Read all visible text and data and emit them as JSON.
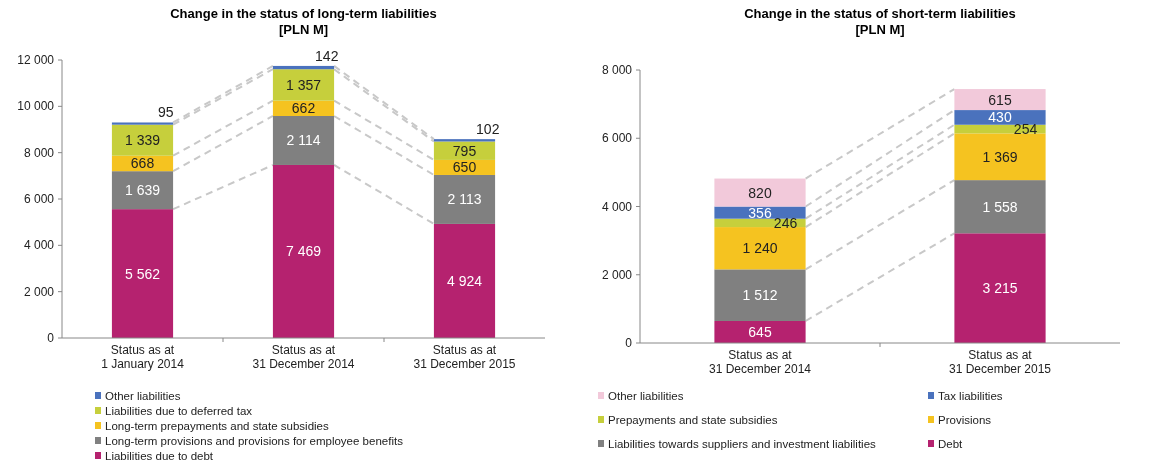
{
  "chart_data": [
    {
      "type": "bar",
      "stacked": true,
      "title": "Change in the status of long-term liabilities\n[PLN M]",
      "categories": [
        "Status as at\n1 January 2014",
        "Status as at\n31 December 2014",
        "Status as at\n31 December 2015"
      ],
      "ylim": [
        0,
        12000
      ],
      "yticks": [
        0,
        {
          "value": 2000,
          "label": "2 000"
        },
        {
          "value": 4000,
          "label": "4 000"
        },
        {
          "value": 6000,
          "label": "6 000"
        },
        {
          "value": 8000,
          "label": "8 000"
        },
        {
          "value": 10000,
          "label": "10 000"
        },
        {
          "value": 12000,
          "label": "12 000"
        }
      ],
      "grid": false,
      "legend": "bottom",
      "series": [
        {
          "name": "Liabilities due to debt",
          "color": "#b5226f",
          "values": [
            5562,
            7469,
            4924
          ],
          "value_labels": [
            "5 562",
            "7 469",
            "4 924"
          ]
        },
        {
          "name": "Long-term provisions and provisions for employee benefits",
          "color": "#808080",
          "values": [
            1639,
            2114,
            2113
          ],
          "value_labels": [
            "1 639",
            "2 114",
            "2 113"
          ]
        },
        {
          "name": "Long-term prepayments and state subsidies",
          "color": "#f5c320",
          "values": [
            668,
            662,
            650
          ],
          "value_labels": [
            "668",
            "662",
            "650"
          ]
        },
        {
          "name": "Liabilities due to deferred tax",
          "color": "#c6cf3c",
          "values": [
            1339,
            1357,
            795
          ],
          "value_labels": [
            "1 339",
            "1 357",
            "795"
          ]
        },
        {
          "name": "Other liabilities",
          "color": "#4a72bd",
          "values": [
            95,
            142,
            102
          ],
          "value_labels": [
            "95",
            "142",
            "102"
          ]
        }
      ]
    },
    {
      "type": "bar",
      "stacked": true,
      "title": "Change in the status of short-term liabilities\n[PLN M]",
      "categories": [
        "Status as at\n31 December 2014",
        "Status as at\n31 December 2015"
      ],
      "ylim": [
        0,
        8000
      ],
      "yticks": [
        0,
        {
          "value": 2000,
          "label": "2 000"
        },
        {
          "value": 4000,
          "label": "4 000"
        },
        {
          "value": 6000,
          "label": "6 000"
        },
        {
          "value": 8000,
          "label": "8 000"
        }
      ],
      "grid": false,
      "legend": "bottom",
      "series": [
        {
          "name": "Debt",
          "color": "#b5226f",
          "values": [
            645,
            3215
          ],
          "value_labels": [
            "645",
            "3 215"
          ]
        },
        {
          "name": "Liabilities towards suppliers and investment liabilities",
          "color": "#808080",
          "values": [
            1512,
            1558
          ],
          "value_labels": [
            "1 512",
            "1 558"
          ]
        },
        {
          "name": "Provisions",
          "color": "#f5c320",
          "values": [
            1240,
            1369
          ],
          "value_labels": [
            "1 240",
            "1 369"
          ]
        },
        {
          "name": "Prepayments and state subsidies",
          "color": "#c6cf3c",
          "values": [
            246,
            254
          ],
          "value_labels": [
            "246",
            "254"
          ]
        },
        {
          "name": "Tax liabilities",
          "color": "#4a72bd",
          "values": [
            356,
            430
          ],
          "value_labels": [
            "356",
            "430"
          ]
        },
        {
          "name": "Other liabilities",
          "color": "#f2c9da",
          "values": [
            820,
            615
          ],
          "value_labels": [
            "820",
            "615"
          ]
        }
      ]
    }
  ]
}
